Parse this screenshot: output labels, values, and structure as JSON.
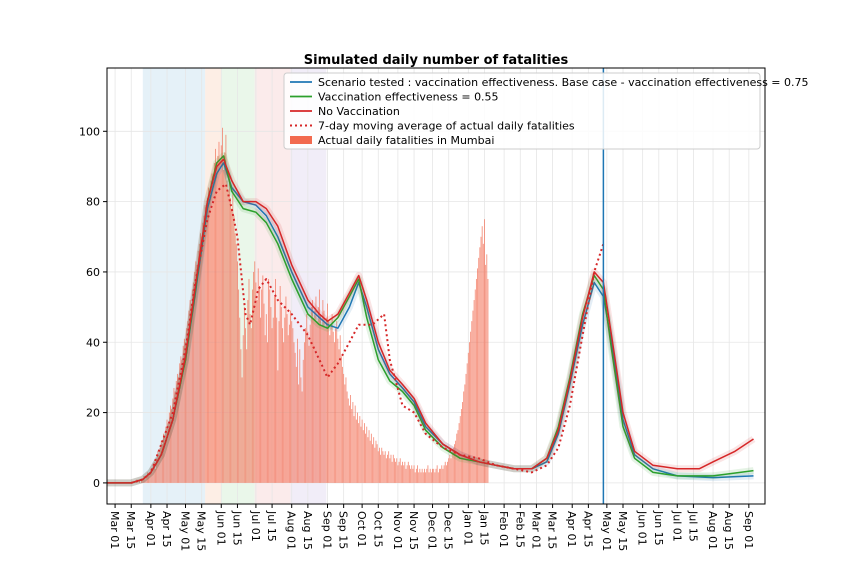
{
  "chart_data": {
    "type": "line",
    "title": "Simulated daily number of fatalities",
    "xlabel": "",
    "ylabel": "",
    "ylim": [
      -6,
      118
    ],
    "yticks": [
      0,
      20,
      40,
      60,
      80,
      100
    ],
    "xticks": [
      "Mar 01",
      "Mar 15",
      "Apr 01",
      "Apr 15",
      "May 01",
      "May 15",
      "Jun 01",
      "Jun 15",
      "Jul 01",
      "Jul 15",
      "Aug 01",
      "Aug 15",
      "Sep 01",
      "Sep 15",
      "Oct 01",
      "Oct 15",
      "Nov 01",
      "Nov 15",
      "Dec 01",
      "Dec 15",
      "Jan 01",
      "Jan 15",
      "Feb 01",
      "Feb 15",
      "Mar 01",
      "Mar 15",
      "Apr 01",
      "Apr 15",
      "May 01",
      "May 15",
      "Jun 01",
      "Jun 15",
      "Jul 01",
      "Jul 15",
      "Aug 01",
      "Aug 15",
      "Sep 01"
    ],
    "xrange_start": "2020-02-23",
    "xrange_end": "2021-09-15",
    "vline_date": "2021-04-28",
    "grid": true,
    "legend_position": "top-right",
    "shaded_periods": [
      {
        "start": "2020-03-25",
        "end": "2020-05-18",
        "color": "#cfe6f2"
      },
      {
        "start": "2020-05-18",
        "end": "2020-06-01",
        "color": "#fbe0cf"
      },
      {
        "start": "2020-06-01",
        "end": "2020-06-30",
        "color": "#d8f0d8"
      },
      {
        "start": "2020-06-30",
        "end": "2020-07-31",
        "color": "#f7dada"
      },
      {
        "start": "2020-07-31",
        "end": "2020-08-31",
        "color": "#e6dff2"
      }
    ],
    "series": [
      {
        "name": "Scenario tested : vaccination effectiveness. Base case - vaccination effectiveness = 0.75",
        "color": "#1f77b4",
        "style": "solid",
        "points": [
          [
            "2020-02-23",
            0
          ],
          [
            "2020-03-15",
            0
          ],
          [
            "2020-03-25",
            1
          ],
          [
            "2020-04-01",
            3
          ],
          [
            "2020-04-10",
            8
          ],
          [
            "2020-04-20",
            18
          ],
          [
            "2020-05-01",
            35
          ],
          [
            "2020-05-10",
            55
          ],
          [
            "2020-05-20",
            78
          ],
          [
            "2020-05-28",
            88
          ],
          [
            "2020-06-03",
            91
          ],
          [
            "2020-06-10",
            84
          ],
          [
            "2020-06-20",
            80
          ],
          [
            "2020-07-01",
            79
          ],
          [
            "2020-07-10",
            76
          ],
          [
            "2020-07-20",
            70
          ],
          [
            "2020-08-01",
            60
          ],
          [
            "2020-08-15",
            50
          ],
          [
            "2020-08-25",
            47
          ],
          [
            "2020-09-01",
            45
          ],
          [
            "2020-09-10",
            44
          ],
          [
            "2020-09-20",
            50
          ],
          [
            "2020-09-28",
            57
          ],
          [
            "2020-10-05",
            50
          ],
          [
            "2020-10-15",
            38
          ],
          [
            "2020-10-25",
            31
          ],
          [
            "2020-11-05",
            27
          ],
          [
            "2020-11-15",
            23
          ],
          [
            "2020-11-25",
            16
          ],
          [
            "2020-12-10",
            11
          ],
          [
            "2020-12-25",
            8
          ],
          [
            "2021-01-10",
            6
          ],
          [
            "2021-01-25",
            5
          ],
          [
            "2021-02-10",
            4
          ],
          [
            "2021-02-25",
            4
          ],
          [
            "2021-03-10",
            6
          ],
          [
            "2021-03-20",
            14
          ],
          [
            "2021-03-30",
            28
          ],
          [
            "2021-04-10",
            45
          ],
          [
            "2021-04-20",
            57
          ],
          [
            "2021-04-28",
            53
          ],
          [
            "2021-05-05",
            40
          ],
          [
            "2021-05-15",
            18
          ],
          [
            "2021-05-25",
            8
          ],
          [
            "2021-06-10",
            4
          ],
          [
            "2021-07-01",
            2
          ],
          [
            "2021-08-01",
            1.5
          ],
          [
            "2021-09-05",
            2
          ]
        ]
      },
      {
        "name": "Vaccination effectiveness  = 0.55",
        "color": "#2ca02c",
        "style": "solid",
        "points": [
          [
            "2020-02-23",
            0
          ],
          [
            "2020-03-15",
            0
          ],
          [
            "2020-03-25",
            1
          ],
          [
            "2020-04-01",
            3
          ],
          [
            "2020-04-10",
            8
          ],
          [
            "2020-04-20",
            18
          ],
          [
            "2020-05-01",
            35
          ],
          [
            "2020-05-10",
            56
          ],
          [
            "2020-05-20",
            80
          ],
          [
            "2020-05-28",
            91
          ],
          [
            "2020-06-03",
            93
          ],
          [
            "2020-06-10",
            83
          ],
          [
            "2020-06-20",
            78
          ],
          [
            "2020-07-01",
            77
          ],
          [
            "2020-07-10",
            74
          ],
          [
            "2020-07-20",
            68
          ],
          [
            "2020-08-01",
            58
          ],
          [
            "2020-08-15",
            48
          ],
          [
            "2020-08-25",
            45
          ],
          [
            "2020-09-01",
            44
          ],
          [
            "2020-09-10",
            47
          ],
          [
            "2020-09-20",
            53
          ],
          [
            "2020-09-28",
            58
          ],
          [
            "2020-10-05",
            47
          ],
          [
            "2020-10-15",
            35
          ],
          [
            "2020-10-25",
            29
          ],
          [
            "2020-11-05",
            26
          ],
          [
            "2020-11-15",
            22
          ],
          [
            "2020-11-25",
            15
          ],
          [
            "2020-12-10",
            10
          ],
          [
            "2020-12-25",
            7
          ],
          [
            "2021-01-10",
            6
          ],
          [
            "2021-01-25",
            5
          ],
          [
            "2021-02-10",
            4
          ],
          [
            "2021-02-25",
            4
          ],
          [
            "2021-03-10",
            7
          ],
          [
            "2021-03-20",
            16
          ],
          [
            "2021-03-30",
            30
          ],
          [
            "2021-04-10",
            48
          ],
          [
            "2021-04-20",
            59
          ],
          [
            "2021-04-28",
            55
          ],
          [
            "2021-05-05",
            38
          ],
          [
            "2021-05-15",
            16
          ],
          [
            "2021-05-25",
            7
          ],
          [
            "2021-06-10",
            3
          ],
          [
            "2021-07-01",
            2
          ],
          [
            "2021-08-01",
            2
          ],
          [
            "2021-09-05",
            3.5
          ]
        ]
      },
      {
        "name": "No Vaccination",
        "color": "#d62728",
        "style": "solid",
        "points": [
          [
            "2020-02-23",
            0
          ],
          [
            "2020-03-15",
            0
          ],
          [
            "2020-03-25",
            1
          ],
          [
            "2020-04-01",
            3
          ],
          [
            "2020-04-10",
            8
          ],
          [
            "2020-04-20",
            18
          ],
          [
            "2020-05-01",
            36
          ],
          [
            "2020-05-10",
            57
          ],
          [
            "2020-05-20",
            80
          ],
          [
            "2020-05-28",
            90
          ],
          [
            "2020-06-03",
            92
          ],
          [
            "2020-06-10",
            86
          ],
          [
            "2020-06-20",
            80
          ],
          [
            "2020-07-01",
            80
          ],
          [
            "2020-07-10",
            78
          ],
          [
            "2020-07-20",
            73
          ],
          [
            "2020-08-01",
            62
          ],
          [
            "2020-08-15",
            52
          ],
          [
            "2020-08-25",
            48
          ],
          [
            "2020-09-01",
            46
          ],
          [
            "2020-09-10",
            48
          ],
          [
            "2020-09-20",
            54
          ],
          [
            "2020-09-28",
            59
          ],
          [
            "2020-10-05",
            52
          ],
          [
            "2020-10-15",
            40
          ],
          [
            "2020-10-25",
            32
          ],
          [
            "2020-11-05",
            28
          ],
          [
            "2020-11-15",
            24
          ],
          [
            "2020-11-25",
            17
          ],
          [
            "2020-12-10",
            11
          ],
          [
            "2020-12-25",
            8
          ],
          [
            "2021-01-10",
            6
          ],
          [
            "2021-01-25",
            5
          ],
          [
            "2021-02-10",
            4
          ],
          [
            "2021-02-25",
            4
          ],
          [
            "2021-03-10",
            7
          ],
          [
            "2021-03-20",
            15
          ],
          [
            "2021-03-30",
            29
          ],
          [
            "2021-04-10",
            47
          ],
          [
            "2021-04-20",
            60
          ],
          [
            "2021-04-28",
            57
          ],
          [
            "2021-05-05",
            42
          ],
          [
            "2021-05-15",
            20
          ],
          [
            "2021-05-25",
            9
          ],
          [
            "2021-06-10",
            5
          ],
          [
            "2021-07-01",
            4
          ],
          [
            "2021-07-20",
            4
          ],
          [
            "2021-08-01",
            6
          ],
          [
            "2021-08-20",
            9
          ],
          [
            "2021-09-05",
            12.5
          ]
        ]
      },
      {
        "name": "7-day moving average of actual daily fatalities",
        "color": "#d62728",
        "style": "dotted",
        "points": [
          [
            "2020-03-15",
            0
          ],
          [
            "2020-03-25",
            1
          ],
          [
            "2020-04-01",
            3
          ],
          [
            "2020-04-10",
            11
          ],
          [
            "2020-04-20",
            20
          ],
          [
            "2020-05-01",
            38
          ],
          [
            "2020-05-10",
            58
          ],
          [
            "2020-05-20",
            75
          ],
          [
            "2020-05-28",
            83
          ],
          [
            "2020-06-05",
            85
          ],
          [
            "2020-06-10",
            78
          ],
          [
            "2020-06-15",
            70
          ],
          [
            "2020-06-22",
            48
          ],
          [
            "2020-06-26",
            45
          ],
          [
            "2020-07-03",
            55
          ],
          [
            "2020-07-10",
            58
          ],
          [
            "2020-07-20",
            52
          ],
          [
            "2020-08-01",
            48
          ],
          [
            "2020-08-15",
            42
          ],
          [
            "2020-08-25",
            35
          ],
          [
            "2020-09-01",
            30
          ],
          [
            "2020-09-10",
            34
          ],
          [
            "2020-09-20",
            40
          ],
          [
            "2020-09-28",
            45
          ],
          [
            "2020-10-10",
            45
          ],
          [
            "2020-10-20",
            48
          ],
          [
            "2020-10-25",
            35
          ],
          [
            "2020-11-05",
            22
          ],
          [
            "2020-11-15",
            20
          ],
          [
            "2020-11-25",
            14
          ],
          [
            "2020-12-10",
            10
          ],
          [
            "2020-12-25",
            8
          ],
          [
            "2021-01-10",
            7
          ],
          [
            "2021-01-25",
            5
          ],
          [
            "2021-02-10",
            4
          ],
          [
            "2021-02-25",
            3
          ],
          [
            "2021-03-10",
            5
          ],
          [
            "2021-03-20",
            10
          ],
          [
            "2021-03-30",
            22
          ],
          [
            "2021-04-10",
            42
          ],
          [
            "2021-04-20",
            60
          ],
          [
            "2021-04-28",
            68
          ]
        ]
      }
    ],
    "bars": {
      "name": "Actual daily fatalities in Mumbai",
      "color": "#f26a4f",
      "start_date": "2020-03-17",
      "values": [
        0,
        0,
        0,
        1,
        0,
        1,
        0,
        1,
        1,
        2,
        1,
        2,
        3,
        2,
        3,
        4,
        3,
        5,
        6,
        4,
        7,
        9,
        8,
        10,
        12,
        11,
        14,
        13,
        16,
        18,
        17,
        20,
        22,
        21,
        24,
        27,
        26,
        29,
        31,
        30,
        34,
        36,
        35,
        39,
        41,
        40,
        44,
        46,
        49,
        52,
        51,
        55,
        57,
        60,
        63,
        62,
        66,
        68,
        71,
        70,
        74,
        76,
        79,
        77,
        81,
        84,
        82,
        86,
        88,
        87,
        91,
        95,
        90,
        93,
        97,
        92,
        96,
        101,
        89,
        94,
        99,
        86,
        83,
        88,
        81,
        78,
        84,
        76,
        71,
        68,
        63,
        55,
        47,
        38,
        30,
        42,
        50,
        44,
        38,
        52,
        58,
        48,
        44,
        55,
        60,
        63,
        57,
        52,
        61,
        56,
        47,
        55,
        59,
        51,
        42,
        48,
        40,
        58,
        55,
        50,
        44,
        47,
        53,
        58,
        47,
        32,
        46,
        56,
        50,
        44,
        40,
        47,
        53,
        48,
        42,
        45,
        49,
        46,
        44,
        40,
        37,
        33,
        41,
        28,
        38,
        30,
        26,
        35,
        40,
        44,
        48,
        43,
        39,
        45,
        50,
        52,
        47,
        49,
        53,
        46,
        50,
        55,
        48,
        45,
        52,
        49,
        44,
        47,
        51,
        46,
        42,
        45,
        48,
        43,
        40,
        44,
        46,
        41,
        38,
        42,
        36,
        33,
        31,
        28,
        30,
        26,
        24,
        22,
        25,
        21,
        23,
        19,
        22,
        18,
        20,
        17,
        19,
        16,
        18,
        15,
        17,
        14,
        16,
        13,
        15,
        12,
        14,
        11,
        13,
        10,
        12,
        11,
        9,
        10,
        8,
        10,
        9,
        8,
        9,
        7,
        8,
        9,
        7,
        8,
        6,
        8,
        7,
        6,
        7,
        5,
        6,
        7,
        5,
        6,
        5,
        6,
        4,
        5,
        6,
        5,
        4,
        5,
        4,
        5,
        3,
        4,
        5,
        3,
        4,
        3,
        4,
        3,
        4,
        3,
        4,
        5,
        3,
        4,
        3,
        4,
        4,
        3,
        4,
        5,
        3,
        4,
        4,
        5,
        4,
        5,
        6,
        5,
        6,
        7,
        8,
        7,
        9,
        10,
        11,
        12,
        14,
        15,
        17,
        19,
        21,
        23,
        26,
        28,
        31,
        34,
        37,
        40,
        43,
        46,
        49,
        52,
        55,
        58,
        61,
        64,
        67,
        70,
        73,
        68,
        75,
        62,
        65,
        58
      ]
    }
  }
}
